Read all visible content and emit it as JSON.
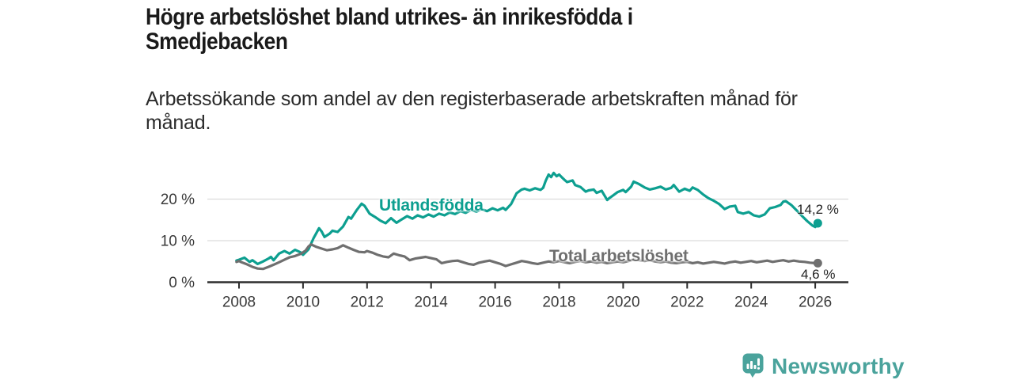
{
  "header": {
    "title_lines": [
      "Högre arbetslöshet bland utrikes- än inrikesfödda i",
      "Smedjebacken"
    ],
    "subtitle_lines": [
      "Arbetssökande som andel av den registerbaserade arbetskraften månad för",
      "månad."
    ]
  },
  "footer": {
    "brand": "Newsworthy",
    "brand_color": "#4aa39c",
    "logo_icon": "speech-bubble-bar-chart-icon"
  },
  "chart_data": {
    "type": "line",
    "title": "Högre arbetslöshet bland utrikes- än inrikesfödda i Smedjebacken",
    "subtitle": "Arbetssökande som andel av den registerbaserade arbetskraften månad för månad.",
    "xlabel": "",
    "ylabel": "",
    "xlim": [
      2007.75,
      2027.0
    ],
    "ylim": [
      0,
      28
    ],
    "grid": "horizontal-only",
    "legend": "inline-series-labels",
    "colors": {
      "axis": "#2e2e2e",
      "gridline": "#dcdcdc",
      "tick_text": "#3a3a3a",
      "value_label_text": "#222222"
    },
    "y_ticks": [
      {
        "value": 0,
        "label": "0 %"
      },
      {
        "value": 10,
        "label": "10 %"
      },
      {
        "value": 20,
        "label": "20 %"
      }
    ],
    "x_ticks": [
      {
        "value": 2008,
        "label": "2008"
      },
      {
        "value": 2010,
        "label": "2010"
      },
      {
        "value": 2012,
        "label": "2012"
      },
      {
        "value": 2014,
        "label": "2014"
      },
      {
        "value": 2016,
        "label": "2016"
      },
      {
        "value": 2018,
        "label": "2018"
      },
      {
        "value": 2020,
        "label": "2020"
      },
      {
        "value": 2022,
        "label": "2022"
      },
      {
        "value": 2024,
        "label": "2024"
      },
      {
        "value": 2026,
        "label": "2026"
      }
    ],
    "series": [
      {
        "name": "Utlandsfödda",
        "color": "#0d9f90",
        "end_label": "14,2 %",
        "end_value": 14.2,
        "points": [
          [
            2007.92,
            5.2
          ],
          [
            2008.0,
            5.4
          ],
          [
            2008.17,
            5.9
          ],
          [
            2008.33,
            4.9
          ],
          [
            2008.42,
            5.3
          ],
          [
            2008.58,
            4.4
          ],
          [
            2008.75,
            5.0
          ],
          [
            2008.92,
            5.7
          ],
          [
            2009.0,
            6.1
          ],
          [
            2009.08,
            5.3
          ],
          [
            2009.25,
            6.9
          ],
          [
            2009.42,
            7.5
          ],
          [
            2009.58,
            6.9
          ],
          [
            2009.75,
            7.8
          ],
          [
            2009.92,
            7.2
          ],
          [
            2010.0,
            6.6
          ],
          [
            2010.17,
            7.9
          ],
          [
            2010.33,
            10.6
          ],
          [
            2010.5,
            13.0
          ],
          [
            2010.58,
            12.2
          ],
          [
            2010.67,
            10.9
          ],
          [
            2010.83,
            11.7
          ],
          [
            2010.92,
            12.4
          ],
          [
            2011.08,
            12.1
          ],
          [
            2011.25,
            13.4
          ],
          [
            2011.42,
            15.7
          ],
          [
            2011.5,
            15.3
          ],
          [
            2011.67,
            17.3
          ],
          [
            2011.83,
            18.9
          ],
          [
            2011.92,
            18.4
          ],
          [
            2012.08,
            16.5
          ],
          [
            2012.25,
            15.7
          ],
          [
            2012.42,
            14.8
          ],
          [
            2012.58,
            14.2
          ],
          [
            2012.75,
            15.4
          ],
          [
            2012.92,
            14.3
          ],
          [
            2013.08,
            15.1
          ],
          [
            2013.25,
            15.9
          ],
          [
            2013.42,
            15.3
          ],
          [
            2013.58,
            16.1
          ],
          [
            2013.75,
            15.6
          ],
          [
            2013.92,
            16.3
          ],
          [
            2014.08,
            15.8
          ],
          [
            2014.25,
            16.5
          ],
          [
            2014.42,
            16.1
          ],
          [
            2014.58,
            16.8
          ],
          [
            2014.75,
            16.4
          ],
          [
            2014.92,
            17.1
          ],
          [
            2015.08,
            16.7
          ],
          [
            2015.25,
            17.4
          ],
          [
            2015.42,
            17.0
          ],
          [
            2015.58,
            17.6
          ],
          [
            2015.75,
            17.1
          ],
          [
            2015.92,
            17.8
          ],
          [
            2016.08,
            17.3
          ],
          [
            2016.25,
            17.9
          ],
          [
            2016.33,
            17.4
          ],
          [
            2016.5,
            18.8
          ],
          [
            2016.67,
            21.4
          ],
          [
            2016.83,
            22.3
          ],
          [
            2016.92,
            22.5
          ],
          [
            2017.08,
            22.1
          ],
          [
            2017.25,
            22.6
          ],
          [
            2017.42,
            22.2
          ],
          [
            2017.5,
            22.7
          ],
          [
            2017.58,
            24.4
          ],
          [
            2017.67,
            25.9
          ],
          [
            2017.75,
            25.3
          ],
          [
            2017.83,
            26.3
          ],
          [
            2017.92,
            25.5
          ],
          [
            2018.0,
            25.9
          ],
          [
            2018.08,
            25.3
          ],
          [
            2018.17,
            24.6
          ],
          [
            2018.25,
            24.1
          ],
          [
            2018.42,
            24.5
          ],
          [
            2018.5,
            23.4
          ],
          [
            2018.67,
            22.9
          ],
          [
            2018.83,
            21.8
          ],
          [
            2018.92,
            22.1
          ],
          [
            2019.08,
            22.3
          ],
          [
            2019.17,
            21.5
          ],
          [
            2019.33,
            22.0
          ],
          [
            2019.5,
            19.8
          ],
          [
            2019.58,
            20.3
          ],
          [
            2019.67,
            20.8
          ],
          [
            2019.83,
            21.7
          ],
          [
            2020.0,
            22.2
          ],
          [
            2020.08,
            21.7
          ],
          [
            2020.25,
            23.0
          ],
          [
            2020.33,
            24.2
          ],
          [
            2020.5,
            23.6
          ],
          [
            2020.67,
            22.8
          ],
          [
            2020.83,
            22.3
          ],
          [
            2021.0,
            22.6
          ],
          [
            2021.17,
            23.0
          ],
          [
            2021.33,
            22.3
          ],
          [
            2021.5,
            22.7
          ],
          [
            2021.58,
            23.4
          ],
          [
            2021.75,
            21.8
          ],
          [
            2021.92,
            22.5
          ],
          [
            2022.08,
            22.0
          ],
          [
            2022.17,
            22.8
          ],
          [
            2022.33,
            22.2
          ],
          [
            2022.5,
            21.1
          ],
          [
            2022.67,
            20.2
          ],
          [
            2022.83,
            19.6
          ],
          [
            2023.0,
            18.8
          ],
          [
            2023.17,
            17.6
          ],
          [
            2023.33,
            18.2
          ],
          [
            2023.5,
            18.4
          ],
          [
            2023.58,
            16.9
          ],
          [
            2023.75,
            16.5
          ],
          [
            2023.92,
            16.9
          ],
          [
            2024.08,
            16.1
          ],
          [
            2024.25,
            15.8
          ],
          [
            2024.42,
            16.3
          ],
          [
            2024.58,
            17.8
          ],
          [
            2024.75,
            18.1
          ],
          [
            2024.92,
            18.6
          ],
          [
            2025.0,
            19.4
          ],
          [
            2025.08,
            19.5
          ],
          [
            2025.25,
            18.6
          ],
          [
            2025.42,
            17.3
          ],
          [
            2025.58,
            16.0
          ],
          [
            2025.75,
            14.7
          ],
          [
            2025.92,
            13.6
          ],
          [
            2026.0,
            13.3
          ],
          [
            2026.08,
            14.2
          ]
        ]
      },
      {
        "name": "Total arbetslöshet",
        "color": "#6f6f6f",
        "end_label": "4,6 %",
        "end_value": 4.6,
        "points": [
          [
            2007.92,
            4.9
          ],
          [
            2008.0,
            5.1
          ],
          [
            2008.08,
            4.8
          ],
          [
            2008.25,
            4.3
          ],
          [
            2008.42,
            3.7
          ],
          [
            2008.58,
            3.3
          ],
          [
            2008.75,
            3.2
          ],
          [
            2008.92,
            3.7
          ],
          [
            2009.08,
            4.2
          ],
          [
            2009.25,
            4.8
          ],
          [
            2009.42,
            5.4
          ],
          [
            2009.58,
            6.0
          ],
          [
            2009.75,
            6.3
          ],
          [
            2009.92,
            6.8
          ],
          [
            2010.08,
            7.6
          ],
          [
            2010.17,
            8.6
          ],
          [
            2010.25,
            9.1
          ],
          [
            2010.42,
            8.5
          ],
          [
            2010.58,
            8.1
          ],
          [
            2010.75,
            7.7
          ],
          [
            2010.92,
            7.9
          ],
          [
            2011.08,
            8.2
          ],
          [
            2011.25,
            8.9
          ],
          [
            2011.42,
            8.3
          ],
          [
            2011.58,
            7.8
          ],
          [
            2011.75,
            7.3
          ],
          [
            2011.92,
            7.2
          ],
          [
            2012.0,
            7.5
          ],
          [
            2012.17,
            7.1
          ],
          [
            2012.33,
            6.6
          ],
          [
            2012.5,
            6.2
          ],
          [
            2012.67,
            6.0
          ],
          [
            2012.83,
            6.9
          ],
          [
            2013.0,
            6.5
          ],
          [
            2013.17,
            6.2
          ],
          [
            2013.33,
            5.3
          ],
          [
            2013.5,
            5.7
          ],
          [
            2013.67,
            5.9
          ],
          [
            2013.83,
            6.1
          ],
          [
            2014.0,
            5.8
          ],
          [
            2014.17,
            5.5
          ],
          [
            2014.33,
            4.6
          ],
          [
            2014.5,
            4.9
          ],
          [
            2014.67,
            5.1
          ],
          [
            2014.83,
            5.2
          ],
          [
            2015.0,
            4.8
          ],
          [
            2015.17,
            4.4
          ],
          [
            2015.33,
            4.2
          ],
          [
            2015.5,
            4.7
          ],
          [
            2015.67,
            5.0
          ],
          [
            2015.83,
            5.2
          ],
          [
            2016.0,
            4.8
          ],
          [
            2016.17,
            4.4
          ],
          [
            2016.33,
            3.9
          ],
          [
            2016.5,
            4.3
          ],
          [
            2016.67,
            4.7
          ],
          [
            2016.83,
            5.1
          ],
          [
            2017.0,
            4.9
          ],
          [
            2017.17,
            4.6
          ],
          [
            2017.33,
            4.4
          ],
          [
            2017.5,
            4.7
          ],
          [
            2017.67,
            5.0
          ],
          [
            2017.83,
            4.8
          ],
          [
            2018.0,
            5.1
          ],
          [
            2018.17,
            4.8
          ],
          [
            2018.33,
            4.6
          ],
          [
            2018.5,
            4.9
          ],
          [
            2018.67,
            5.1
          ],
          [
            2018.83,
            4.8
          ],
          [
            2019.0,
            5.0
          ],
          [
            2019.17,
            4.7
          ],
          [
            2019.33,
            4.9
          ],
          [
            2019.5,
            4.6
          ],
          [
            2019.67,
            4.8
          ],
          [
            2019.83,
            5.0
          ],
          [
            2020.0,
            4.8
          ],
          [
            2020.17,
            5.1
          ],
          [
            2020.33,
            5.5
          ],
          [
            2020.5,
            5.3
          ],
          [
            2020.67,
            5.1
          ],
          [
            2020.83,
            5.3
          ],
          [
            2021.0,
            5.0
          ],
          [
            2021.17,
            4.8
          ],
          [
            2021.33,
            5.0
          ],
          [
            2021.5,
            4.7
          ],
          [
            2021.67,
            4.6
          ],
          [
            2021.83,
            4.8
          ],
          [
            2022.0,
            4.9
          ],
          [
            2022.17,
            4.6
          ],
          [
            2022.33,
            4.8
          ],
          [
            2022.5,
            4.5
          ],
          [
            2022.67,
            4.7
          ],
          [
            2022.83,
            4.9
          ],
          [
            2023.0,
            4.7
          ],
          [
            2023.17,
            4.5
          ],
          [
            2023.33,
            4.8
          ],
          [
            2023.5,
            5.0
          ],
          [
            2023.67,
            4.7
          ],
          [
            2023.83,
            4.9
          ],
          [
            2024.0,
            5.1
          ],
          [
            2024.17,
            4.8
          ],
          [
            2024.33,
            5.0
          ],
          [
            2024.5,
            5.2
          ],
          [
            2024.67,
            4.9
          ],
          [
            2024.83,
            5.1
          ],
          [
            2025.0,
            5.3
          ],
          [
            2025.17,
            5.0
          ],
          [
            2025.33,
            5.2
          ],
          [
            2025.5,
            5.0
          ],
          [
            2025.67,
            4.9
          ],
          [
            2025.83,
            4.7
          ],
          [
            2026.0,
            4.6
          ],
          [
            2026.08,
            4.6
          ]
        ]
      }
    ]
  }
}
